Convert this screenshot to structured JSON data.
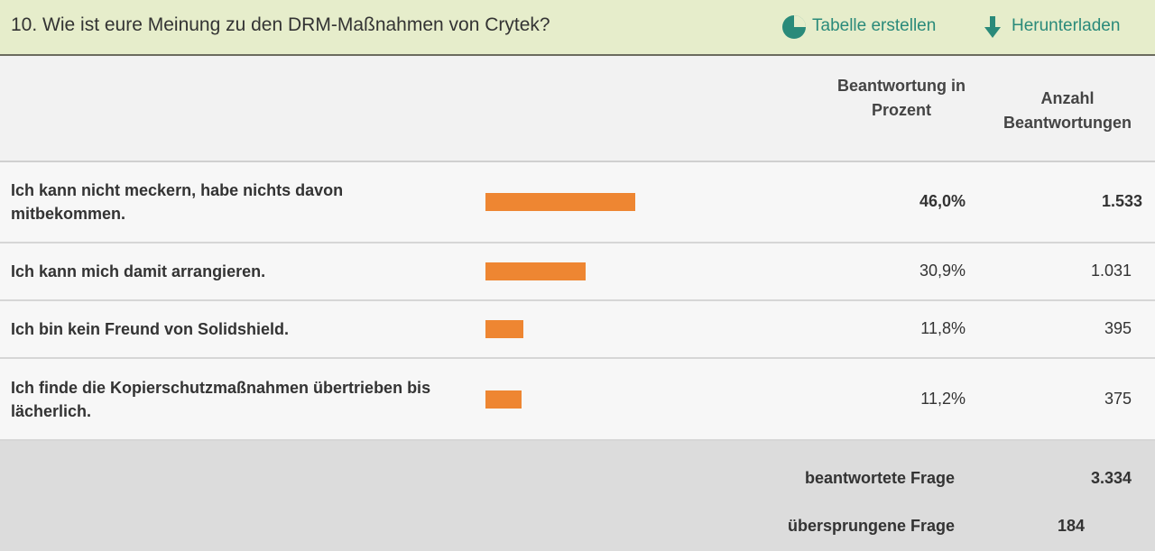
{
  "header": {
    "title": "10. Wie ist eure Meinung zu den DRM-Maßnahmen von Crytek?",
    "actions": [
      "Tabelle erstellen",
      "Herunterladen"
    ]
  },
  "table": {
    "columns": [
      "Beantwortung in Prozent",
      "Anzahl Beantwortungen"
    ],
    "rows": [
      {
        "answer": "Ich kann nicht meckern, habe nichts davon mitbekommen.",
        "percent": {
          "value": 46.0,
          "label": "46,0%"
        },
        "count": "1.533"
      },
      {
        "answer": "Ich kann mich damit arrangieren.",
        "percent": {
          "value": 30.9,
          "label": "30,9%"
        },
        "count": "1.031"
      },
      {
        "answer": "Ich bin kein Freund von Solidshield.",
        "percent": {
          "value": 11.8,
          "label": "11,8%"
        },
        "count": "395"
      },
      {
        "answer": "Ich finde die Kopierschutzmaßnahmen übertrieben bis lächerlich.",
        "percent": {
          "value": 11.2,
          "label": "11,2%"
        },
        "count": "375"
      }
    ]
  },
  "footer": {
    "answered_label": "beantwortete Frage",
    "answered": "3.334",
    "skipped_label": "übersprungene Frage",
    "skipped": "184"
  }
}
